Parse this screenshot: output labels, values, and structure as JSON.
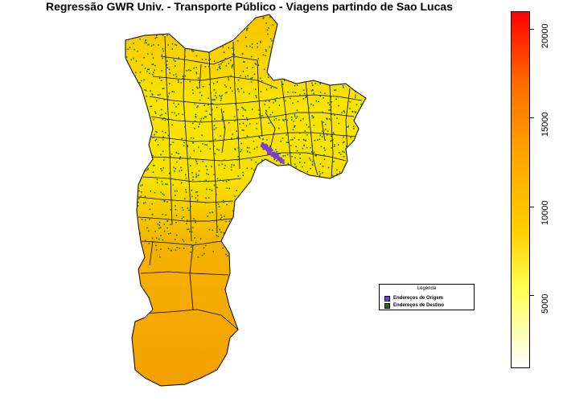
{
  "title": "Regressão GWR Univ. - Transporte Público - Viagens partindo de Sao Lucas",
  "legend": {
    "title": "Legenda",
    "items": [
      {
        "label": "Endereços de Origem",
        "color": "#7b3fd1"
      },
      {
        "label": "Endereços de Destino",
        "color": "#1a6b1a"
      }
    ]
  },
  "colorbar": {
    "ticks": [
      "5000",
      "10000",
      "15000",
      "20000"
    ],
    "range": [
      0,
      20000
    ],
    "colors": [
      "#ffffff",
      "#ffff55",
      "#ffd000",
      "#ffa500",
      "#ff6a00",
      "#ff0000"
    ]
  },
  "map_colors": {
    "north": "#f5b800",
    "center": "#f7e000",
    "south": "#f5a300",
    "border": "#000000"
  }
}
